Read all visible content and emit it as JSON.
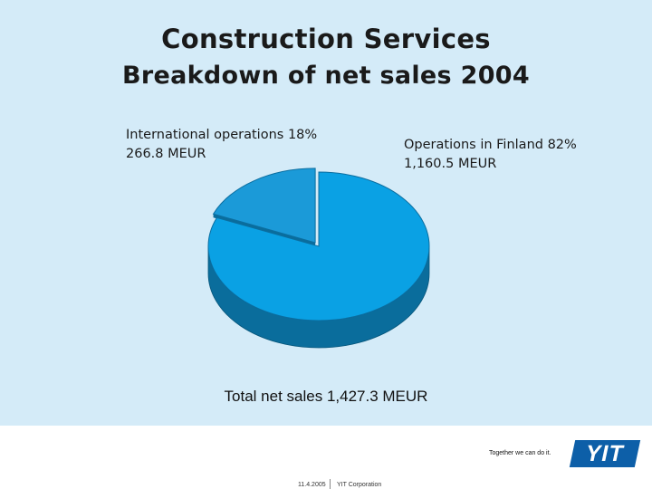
{
  "slide": {
    "title": "Construction Services",
    "subtitle": "Breakdown of net sales 2004",
    "tagline": "Together we can do it.",
    "logo": "YIT",
    "footer_date": "11.4.2005",
    "footer_company": "YIT Corporation"
  },
  "chart_data": {
    "type": "pie",
    "title": "Breakdown of net sales 2004",
    "unit": "MEUR",
    "style": "3d-exploded",
    "slices": [
      {
        "name": "International operations",
        "percent": "18%",
        "value": 266.8,
        "value_label": "266.8 MEUR",
        "color": "#1b9ad8",
        "exploded": true
      },
      {
        "name": "Operations in Finland",
        "percent": "82%",
        "value": 1160.5,
        "value_label": "1,160.5 MEUR",
        "color": "#0aa1e4",
        "exploded": false
      }
    ],
    "total_label": "Total net sales 1,427.3 MEUR"
  },
  "colors": {
    "background": "#d4ebf8",
    "slice_side": "#0a6d9c",
    "logo": "#0d5fa8"
  }
}
